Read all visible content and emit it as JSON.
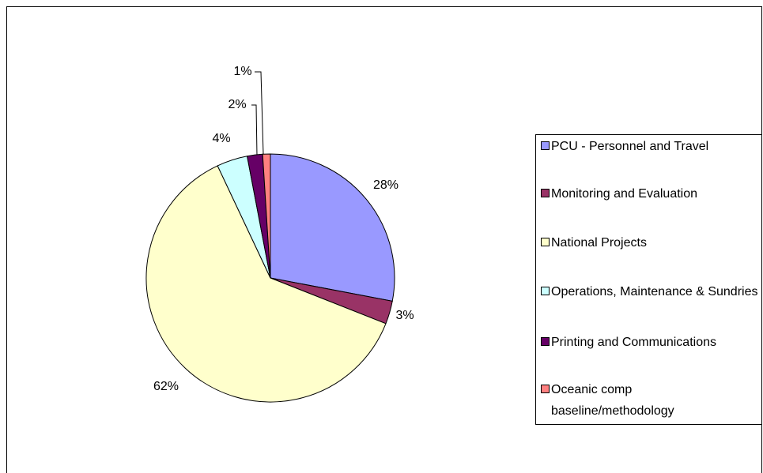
{
  "chart_data": {
    "type": "pie",
    "categories": [
      "PCU - Personnel and Travel",
      "Monitoring and Evaluation",
      "National Projects",
      "Operations, Maintenance & Sundries",
      "Printing and Communications",
      "Oceanic comp baseline/methodology"
    ],
    "values": [
      28,
      3,
      62,
      4,
      2,
      1
    ],
    "value_labels": [
      "28%",
      "3%",
      "62%",
      "4%",
      "2%",
      "1%"
    ],
    "colors": [
      "#9999ff",
      "#993366",
      "#ffffcc",
      "#ccffff",
      "#660066",
      "#ff8080"
    ],
    "legend": "right"
  }
}
